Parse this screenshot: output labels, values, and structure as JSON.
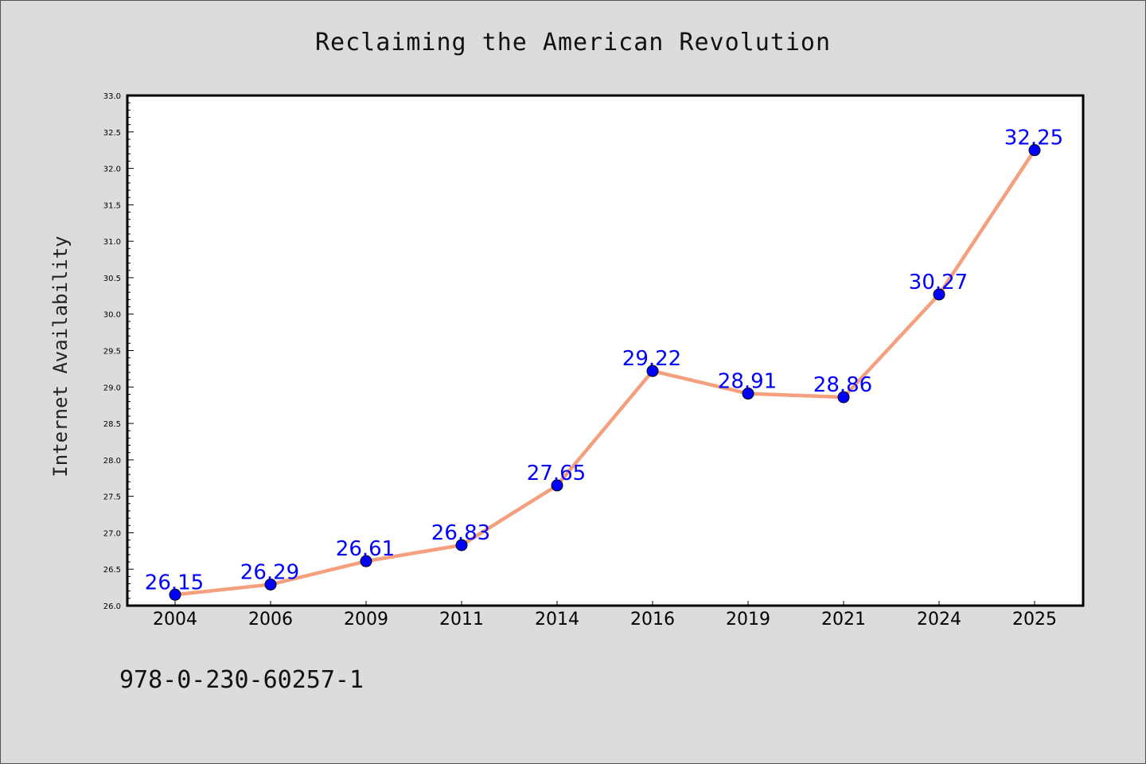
{
  "chart_data": {
    "type": "line",
    "title": "Reclaiming the American Revolution",
    "xlabel": "",
    "ylabel": "Internet Availability",
    "categories": [
      "2004",
      "2006",
      "2009",
      "2011",
      "2014",
      "2016",
      "2019",
      "2021",
      "2024",
      "2025"
    ],
    "series": [
      {
        "values": [
          26.15,
          26.29,
          26.61,
          26.83,
          27.65,
          29.22,
          28.91,
          28.86,
          30.27,
          32.25
        ],
        "data_labels": [
          "26.15",
          "26.29",
          "26.61",
          "26.83",
          "27.65",
          "29.22",
          "28.91",
          "28.86",
          "30.27",
          "32.25"
        ]
      }
    ],
    "ylim": [
      26.0,
      33.0
    ],
    "yticks": [
      "26.0",
      "26.5",
      "27.0",
      "27.5",
      "28.0",
      "28.5",
      "29.0",
      "29.5",
      "30.0",
      "30.5",
      "31.0",
      "31.5",
      "32.0",
      "32.5",
      "33.0"
    ],
    "grid": false,
    "line_color": "#f4a07e",
    "marker_color": "#0000ff",
    "label_color": "#0000ff",
    "plot_background": "#ffffff",
    "figure_background": "#dcdcdc"
  },
  "footer": {
    "isbn": "978-0-230-60257-1"
  }
}
